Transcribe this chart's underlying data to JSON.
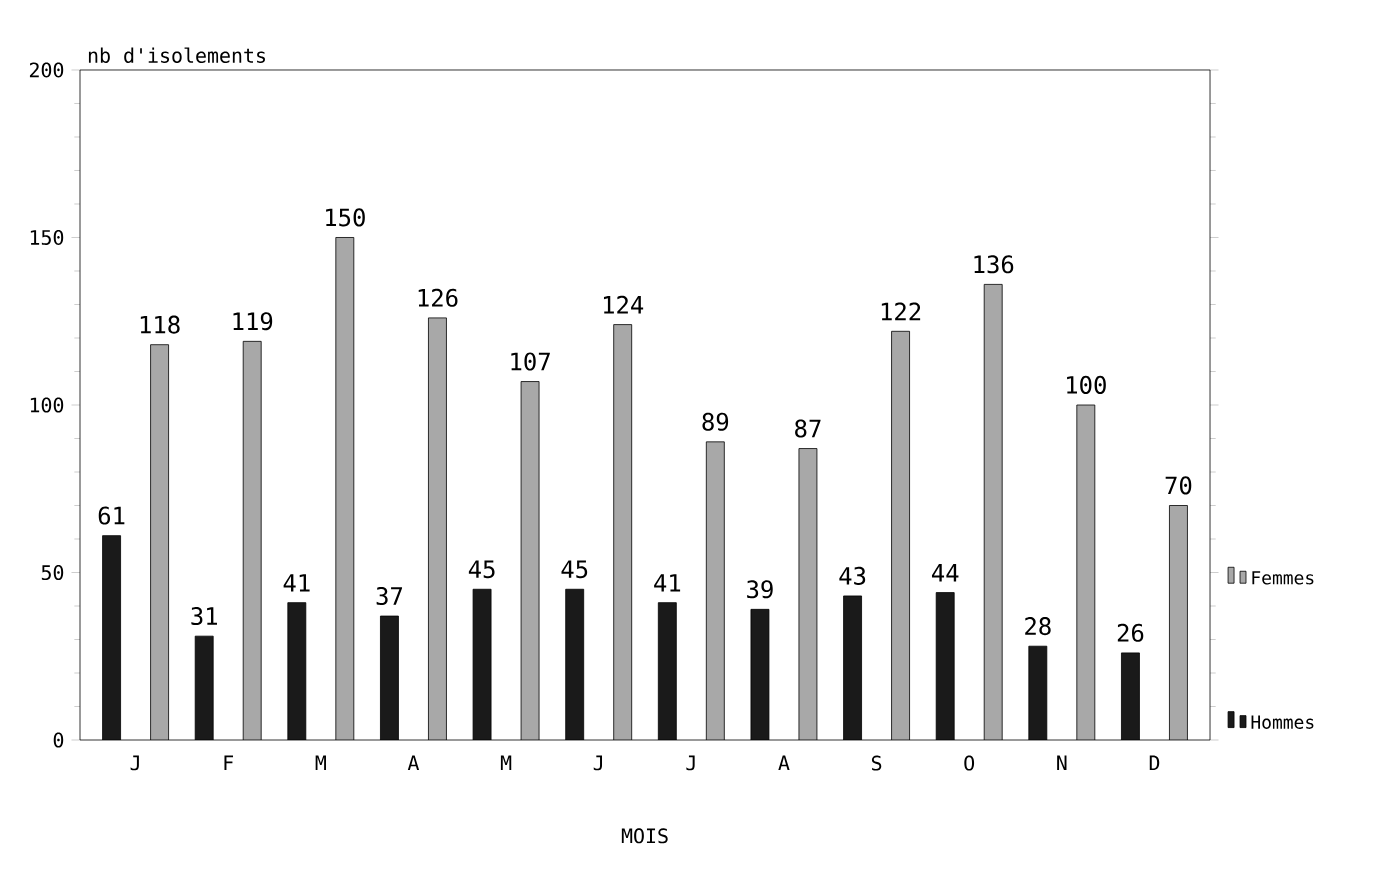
{
  "chart_data": {
    "type": "bar",
    "xlabel": "MOIS",
    "ylabel": "nb d'isolements",
    "categories": [
      "J",
      "F",
      "M",
      "A",
      "M",
      "J",
      "J",
      "A",
      "S",
      "O",
      "N",
      "D"
    ],
    "series": [
      {
        "name": "Hommes",
        "color": "#1a1a1a",
        "values": [
          61,
          31,
          41,
          37,
          45,
          45,
          41,
          39,
          43,
          44,
          28,
          26
        ]
      },
      {
        "name": "Femmes",
        "color": "#a8a8a8",
        "values": [
          118,
          119,
          150,
          126,
          107,
          124,
          89,
          87,
          122,
          136,
          100,
          70
        ]
      }
    ],
    "ylim": [
      0,
      200
    ],
    "yticks": [
      0,
      50,
      100,
      150,
      200
    ],
    "data_labels": true,
    "legend": "right",
    "grid": false
  }
}
